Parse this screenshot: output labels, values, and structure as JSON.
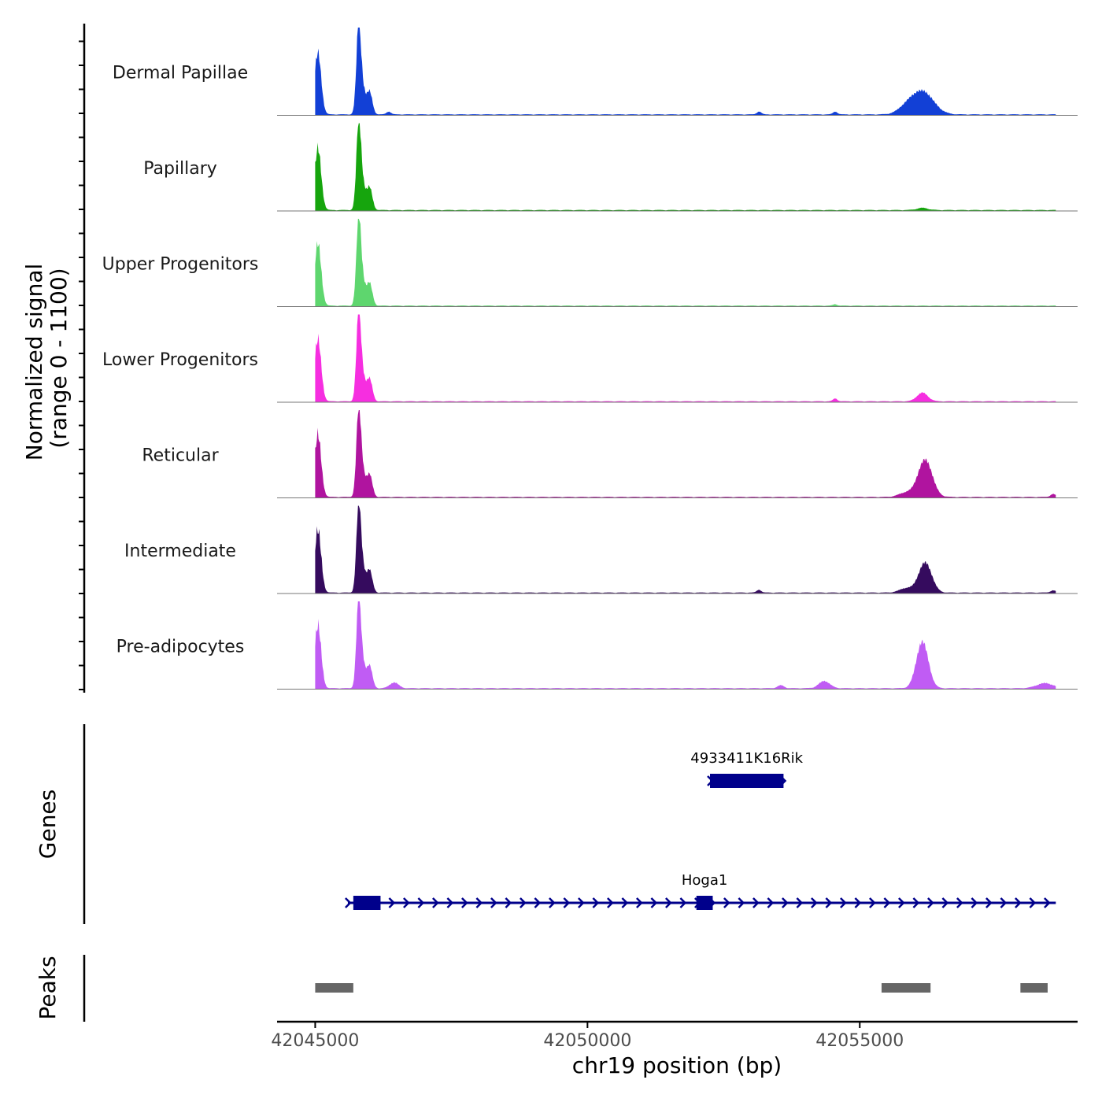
{
  "chart_data": {
    "type": "area",
    "title": "",
    "xlabel": "chr19 position (bp)",
    "ylabel_line1": "Normalized signal",
    "ylabel_line2": "(range 0 - 1100)",
    "xlim": [
      42044300,
      42059000
    ],
    "ylim": [
      0,
      1100
    ],
    "x_ticks": [
      42045000,
      42050000,
      42055000
    ],
    "x_tick_labels": [
      "42045000",
      "42050000",
      "42055000"
    ],
    "tracks": [
      {
        "name": "Dermal Papillae",
        "color": "#1240d6",
        "peaks": [
          [
            42045000,
            42045100,
            880,
            60,
            0.6
          ],
          [
            42045800,
            42045900,
            430,
            60,
            0.5
          ],
          [
            42045950,
            42046050,
            300,
            50,
            0.4
          ],
          [
            42045760,
            42045830,
            1000,
            40,
            0.5
          ],
          [
            42056100,
            42056200,
            320,
            200,
            0.5
          ],
          [
            42055800,
            42055900,
            80,
            150,
            0.5
          ],
          [
            42046300,
            42046400,
            40,
            40,
            0.5
          ],
          [
            42053100,
            42053200,
            40,
            40,
            0.5
          ],
          [
            42054500,
            42054600,
            40,
            40,
            0.5
          ]
        ]
      },
      {
        "name": "Papillary",
        "color": "#16a50d",
        "peaks": [
          [
            42045000,
            42045100,
            880,
            60,
            0.6
          ],
          [
            42045800,
            42045900,
            430,
            60,
            0.5
          ],
          [
            42045950,
            42046050,
            300,
            50,
            0.4
          ],
          [
            42045760,
            42045830,
            1000,
            40,
            0.5
          ],
          [
            42056100,
            42056200,
            30,
            100,
            0.5
          ]
        ]
      },
      {
        "name": "Upper Progenitors",
        "color": "#5ed66e",
        "peaks": [
          [
            42045000,
            42045100,
            880,
            60,
            0.6
          ],
          [
            42045800,
            42045900,
            430,
            60,
            0.5
          ],
          [
            42045950,
            42046050,
            300,
            50,
            0.4
          ],
          [
            42045760,
            42045830,
            1000,
            40,
            0.5
          ],
          [
            42054500,
            42054600,
            20,
            40,
            0.5
          ]
        ]
      },
      {
        "name": "Lower Progenitors",
        "color": "#f62ee0",
        "peaks": [
          [
            42045000,
            42045100,
            880,
            60,
            0.6
          ],
          [
            42045800,
            42045900,
            430,
            60,
            0.5
          ],
          [
            42045950,
            42046050,
            300,
            50,
            0.4
          ],
          [
            42045760,
            42045830,
            1000,
            40,
            0.5
          ],
          [
            42056100,
            42056200,
            120,
            100,
            0.5
          ],
          [
            42054500,
            42054600,
            40,
            40,
            0.5
          ]
        ]
      },
      {
        "name": "Reticular",
        "color": "#b0149f",
        "peaks": [
          [
            42045000,
            42045100,
            880,
            60,
            0.6
          ],
          [
            42045800,
            42045900,
            430,
            60,
            0.5
          ],
          [
            42045950,
            42046050,
            300,
            50,
            0.4
          ],
          [
            42045760,
            42045830,
            1000,
            40,
            0.5
          ],
          [
            42056150,
            42056250,
            520,
            130,
            0.5
          ],
          [
            42055800,
            42055900,
            60,
            130,
            0.5
          ],
          [
            42058500,
            42058600,
            40,
            50,
            0.5
          ]
        ]
      },
      {
        "name": "Intermediate",
        "color": "#350b5e",
        "peaks": [
          [
            42045000,
            42045100,
            880,
            60,
            0.6
          ],
          [
            42045800,
            42045900,
            430,
            60,
            0.5
          ],
          [
            42045950,
            42046050,
            300,
            50,
            0.4
          ],
          [
            42045760,
            42045830,
            1000,
            40,
            0.5
          ],
          [
            42056150,
            42056250,
            420,
            120,
            0.5
          ],
          [
            42055800,
            42055900,
            60,
            120,
            0.5
          ],
          [
            42053100,
            42053200,
            40,
            40,
            0.5
          ],
          [
            42058500,
            42058600,
            30,
            50,
            0.5
          ]
        ]
      },
      {
        "name": "Pre-adipocytes",
        "color": "#c05cf4",
        "peaks": [
          [
            42045000,
            42045100,
            880,
            60,
            0.6
          ],
          [
            42045800,
            42045900,
            430,
            60,
            0.5
          ],
          [
            42045950,
            42046050,
            300,
            50,
            0.4
          ],
          [
            42045760,
            42045830,
            1000,
            40,
            0.5
          ],
          [
            42056100,
            42056200,
            650,
            110,
            0.5
          ],
          [
            42054300,
            42054400,
            100,
            100,
            0.5
          ],
          [
            42046400,
            42046500,
            80,
            80,
            0.5
          ],
          [
            42058300,
            42058500,
            70,
            150,
            0.5
          ],
          [
            42053500,
            42053600,
            40,
            60,
            0.5
          ]
        ]
      }
    ],
    "genes_label": "Genes",
    "genes": [
      {
        "name": "4933411K16Rik",
        "start": 42052250,
        "end": 42053600,
        "exons": [
          [
            42052250,
            42053600
          ]
        ],
        "row": 0,
        "color": "#00008b"
      },
      {
        "name": "Hoga1",
        "start": 42045600,
        "end": 42058600,
        "exons": [
          [
            42045700,
            42046200
          ],
          [
            42052000,
            42052300
          ]
        ],
        "row": 1,
        "color": "#00008b"
      }
    ],
    "peaks_label": "Peaks",
    "peaks_color": "#666666",
    "peak_regions": [
      [
        42045000,
        42045700
      ],
      [
        42055400,
        42056300
      ],
      [
        42057950,
        42058450
      ]
    ]
  }
}
